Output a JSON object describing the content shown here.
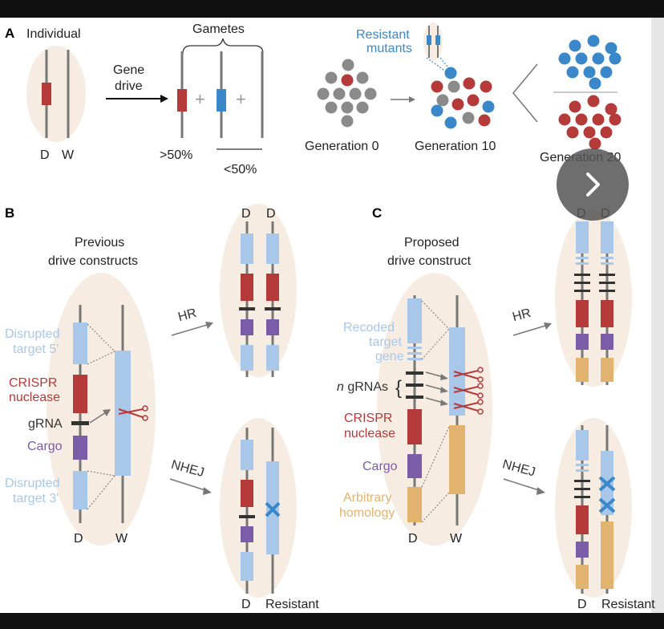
{
  "panelA": {
    "label": "A",
    "individual": "Individual",
    "d": "D",
    "w": "W",
    "gene_drive_line1": "Gene",
    "gene_drive_line2": "drive",
    "gametes": "Gametes",
    "plus1": "+",
    "plus2": "+",
    "over50": ">50%",
    "under50": "<50%",
    "resistant_line1": "Resistant",
    "resistant_line2": "mutants",
    "gen0": "Generation 0",
    "gen10": "Generation 10",
    "gen20": "Generation 20"
  },
  "panelB": {
    "label": "B",
    "title_line1": "Previous",
    "title_line2": "drive constructs",
    "disrupted5_line1": "Disrupted",
    "disrupted5_line2": "target 5'",
    "crispr_line1": "CRISPR",
    "crispr_line2": "nuclease",
    "grna": "gRNA",
    "cargo": "Cargo",
    "disrupted3_line1": "Disrupted",
    "disrupted3_line2": "target 3'",
    "d": "D",
    "w": "W",
    "hr": "HR",
    "nhej": "NHEJ",
    "top_d1": "D",
    "top_d2": "D",
    "bottom_d": "D",
    "resistant": "Resistant"
  },
  "panelC": {
    "label": "C",
    "title_line1": "Proposed",
    "title_line2": "drive construct",
    "recoded_line1": "Recoded",
    "recoded_line2": "target",
    "recoded_line3": "gene",
    "n": "n",
    "grnas": " gRNAs",
    "crispr_line1": "CRISPR",
    "crispr_line2": "nuclease",
    "cargo": "Cargo",
    "arbitrary_line1": "Arbitrary",
    "arbitrary_line2": "homology",
    "d": "D",
    "w": "W",
    "hr": "HR",
    "nhej": "NHEJ",
    "top_d1": "D",
    "top_d2": "D",
    "bottom_d": "D",
    "resistant": "Resistant"
  },
  "next_icon": "chevron-right-icon",
  "colors": {
    "background": "#ffffff",
    "frame": "#111111",
    "ellipse": "#f6ece1",
    "chromosome": "#777777",
    "light_blue": "#a9c7e8",
    "red": "#b53a3a",
    "purple": "#7b5ca8",
    "tan": "#e2b36f",
    "gray_dot": "#8a8a8a",
    "blue_dot": "#3a87c9",
    "red_dot": "#b53a3a"
  }
}
